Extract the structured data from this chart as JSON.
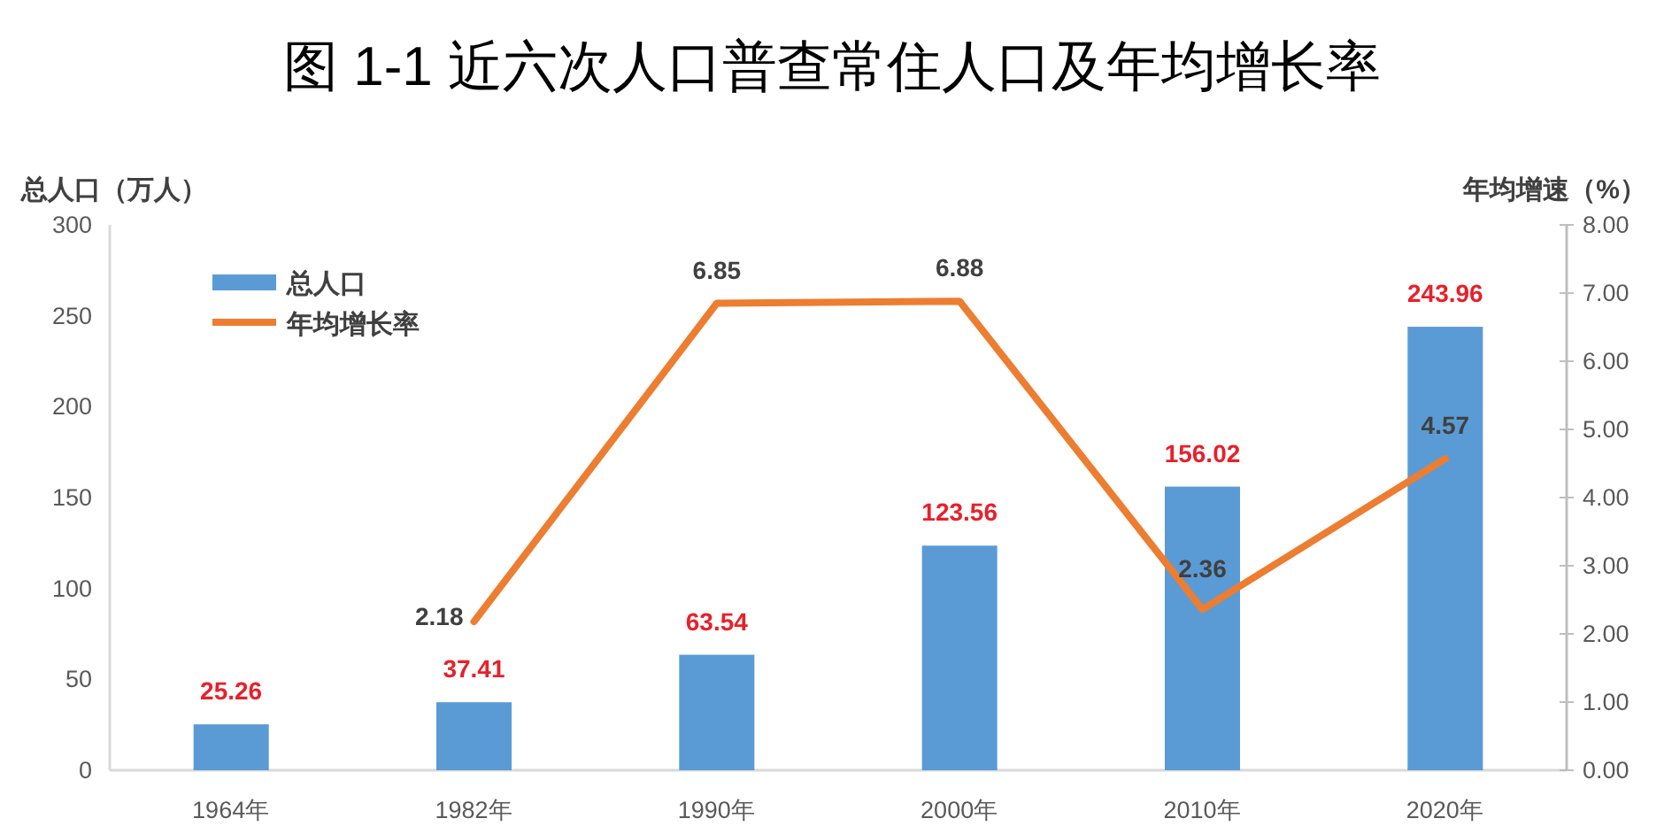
{
  "chart_data": {
    "type": "bar",
    "title": "图 1-1 近六次人口普查常住人口及年均增长率",
    "ylabel": "总人口（万人）",
    "y2label": "年均增速（%）",
    "categories": [
      "1964年",
      "1982年",
      "1990年",
      "2000年",
      "2010年",
      "2020年"
    ],
    "series": [
      {
        "name": "总人口",
        "color": "#5b9bd5",
        "values": [
          25.26,
          37.41,
          63.54,
          123.56,
          156.02,
          243.96
        ]
      },
      {
        "name": "年均增长率",
        "type": "line",
        "axis": "y2",
        "color": "#ed7d31",
        "values": [
          null,
          2.18,
          6.85,
          6.88,
          2.36,
          4.57
        ]
      }
    ],
    "ylim": [
      0,
      300
    ],
    "yticks": [
      0,
      50,
      100,
      150,
      200,
      250,
      300
    ],
    "y2lim": [
      0,
      8
    ],
    "y2ticks": [
      {
        "value": 0,
        "label": "0.00"
      },
      {
        "value": 1,
        "label": "1.00"
      },
      {
        "value": 2,
        "label": "2.00"
      },
      {
        "value": 3,
        "label": "3.00"
      },
      {
        "value": 4,
        "label": "4.00"
      },
      {
        "value": 5,
        "label": "5.00"
      },
      {
        "value": 6,
        "label": "6.00"
      },
      {
        "value": 7,
        "label": "7.00"
      },
      {
        "value": 8,
        "label": "8.00"
      }
    ],
    "data_labels": true,
    "legend": "top left"
  }
}
